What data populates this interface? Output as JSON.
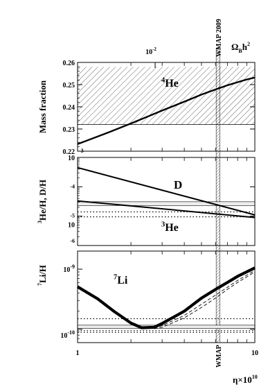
{
  "chart_data": [
    {
      "type": "line",
      "ylabel": "Mass fraction",
      "top_axis": {
        "label_main": "Ω",
        "label_sub": "B",
        "label_tail": "h",
        "label_sup": "2",
        "tick_label_base": "10",
        "tick_label_exp": "-2",
        "tick_value": 0.01
      },
      "x_scale": "log",
      "xlim": [
        1,
        10
      ],
      "ylim": [
        0.22,
        0.26
      ],
      "y_ticks": [
        "0.22",
        "0.23",
        "0.24",
        "0.25",
        "0.26"
      ],
      "y_tick_values": [
        0.22,
        0.23,
        0.24,
        0.25,
        0.26
      ],
      "corner_label": "-3",
      "species_label": {
        "sup": "4",
        "main": "He"
      },
      "observed_band": [
        0.232,
        0.258
      ],
      "series": [
        {
          "x": [
            1,
            1.5,
            2,
            2.5,
            3,
            4,
            5,
            6,
            7,
            8,
            9,
            10
          ],
          "y": [
            0.2232,
            0.2285,
            0.2325,
            0.2357,
            0.2383,
            0.2423,
            0.2455,
            0.2478,
            0.2497,
            0.2511,
            0.2523,
            0.2532
          ]
        }
      ]
    },
    {
      "type": "line",
      "ylabel_parts": {
        "sup1": "3",
        "main": "He/H, D/H"
      },
      "x_scale": "log",
      "xlim": [
        1,
        10
      ],
      "y_scale": "log",
      "ylim": [
        1e-06,
        0.001
      ],
      "y_tick_values": [
        0.001,
        0.0001,
        1e-05,
        1e-06
      ],
      "y_tick_labels": [
        {
          "base": "10",
          "exp": ""
        },
        {
          "base": "",
          "exp": "-4"
        },
        {
          "base": "",
          "exp": "-5"
        },
        {
          "base": "10",
          "exp": ""
        },
        {
          "base": "",
          "exp": "-6"
        }
      ],
      "species_labels": [
        {
          "main": "D",
          "sup": ""
        },
        {
          "main": "He",
          "sup": "3"
        }
      ],
      "observed_bands": {
        "D_band": [
          2.3e-05,
          3.1e-05
        ],
        "He3_dotted": [
          9.5e-06,
          1.4e-05
        ]
      },
      "series": [
        {
          "x": [
            1,
            10
          ],
          "y": [
            0.00045,
            1.1e-05
          ]
        },
        {
          "x": [
            1,
            10
          ],
          "y": [
            3.3e-05,
            9e-06
          ]
        }
      ]
    },
    {
      "type": "line",
      "ylabel_parts": {
        "sup": "7",
        "main": "Li/H"
      },
      "x_scale": "log",
      "xlim": [
        1,
        10
      ],
      "y_scale": "log",
      "ylim": [
        6e-11,
        2e-09
      ],
      "y_tick_values": [
        1e-09,
        1e-10
      ],
      "y_tick_labels": [
        {
          "base": "10",
          "exp": "-9"
        },
        {
          "base": "10",
          "exp": "-10"
        }
      ],
      "x_tick_labels": [
        "1",
        "10"
      ],
      "xlabel": {
        "main": "η×10",
        "sup": "10"
      },
      "species_label": {
        "sup": "7",
        "main": "Li"
      },
      "observed_band": [
        1.03e-10,
        1.17e-10
      ],
      "dotted_lines": [
        1.5e-10,
        9.5e-11,
        8.9e-11
      ],
      "series": [
        {
          "x": [
            1,
            1.3,
            1.6,
            2,
            2.3,
            2.7,
            3,
            4,
            5,
            6,
            7,
            8,
            10
          ],
          "y": [
            5.1e-10,
            3.2e-10,
            2e-10,
            1.27e-10,
            1.06e-10,
            1.08e-10,
            1.25e-10,
            2e-10,
            3.3e-10,
            4.6e-10,
            6e-10,
            7.6e-10,
            1.05e-09
          ]
        },
        {
          "x": [
            2.7,
            3,
            4,
            5,
            6,
            7,
            8,
            10
          ],
          "y": [
            1.04e-10,
            1.15e-10,
            1.7e-10,
            2.6e-10,
            3.7e-10,
            5e-10,
            6.5e-10,
            9.5e-10
          ]
        },
        {
          "x": [
            2.7,
            3,
            4,
            5,
            6,
            7,
            8,
            10
          ],
          "y": [
            1.02e-10,
            1.08e-10,
            1.55e-10,
            2.3e-10,
            3.3e-10,
            4.6e-10,
            6e-10,
            9e-10
          ]
        }
      ]
    }
  ],
  "wmap": {
    "value": 6.2,
    "band": [
      6.05,
      6.35
    ],
    "label_top": "WMAP 2009",
    "label_bottom": "WMAP"
  },
  "colors": {
    "ink": "#000000",
    "background": "#ffffff"
  }
}
